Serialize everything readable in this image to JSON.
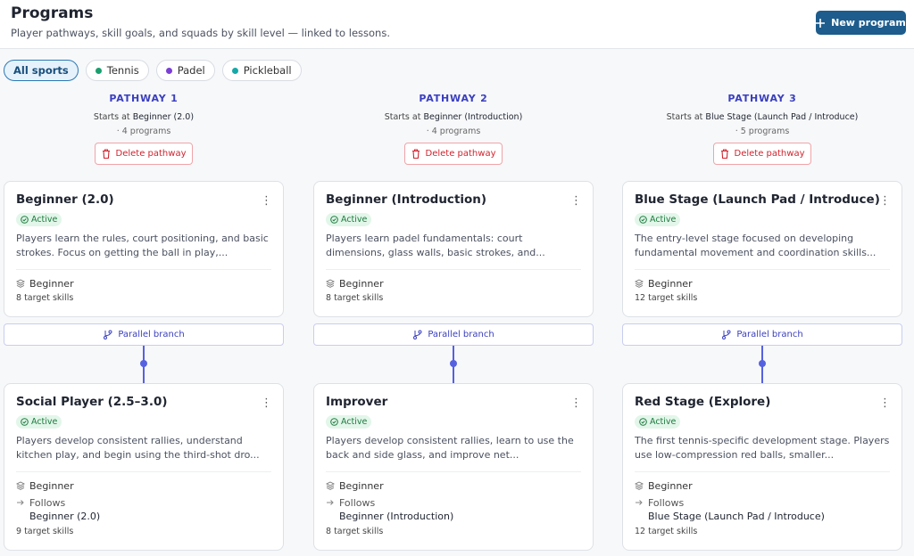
{
  "header": {
    "title": "Programs",
    "subtitle": "Player pathways, skill goals, and squads by skill level — linked to lessons.",
    "new_button": "New program"
  },
  "filters": [
    {
      "label": "All sports"
    },
    {
      "label": "Tennis",
      "color": "#1a9e6e"
    },
    {
      "label": "Padel",
      "color": "#7b3fd6"
    },
    {
      "label": "Pickleball",
      "color": "#16a8a8"
    }
  ],
  "pathways": [
    {
      "title": "PATHWAY 1",
      "starts_at": "Starts at",
      "start": "Beginner (2.0)",
      "count": "· 4 programs",
      "delete": "Delete pathway",
      "branch": "Parallel branch",
      "programs": [
        {
          "name": "Beginner (2.0)",
          "status": "Active",
          "description": "Players learn the rules, court positioning, and basic strokes. Focus on getting the ball in play,...",
          "level": "Beginner",
          "skills": "8 target skills"
        },
        {
          "name": "Social Player (2.5–3.0)",
          "status": "Active",
          "description": "Players develop consistent rallies, understand kitchen play, and begin using the third-shot dro...",
          "level": "Beginner",
          "follows_label": "Follows",
          "follows": "Beginner (2.0)",
          "skills": "9 target skills"
        }
      ]
    },
    {
      "title": "PATHWAY 2",
      "starts_at": "Starts at",
      "start": "Beginner (Introduction)",
      "count": "· 4 programs",
      "delete": "Delete pathway",
      "branch": "Parallel branch",
      "programs": [
        {
          "name": "Beginner (Introduction)",
          "status": "Active",
          "description": "Players learn padel fundamentals: court dimensions, glass walls, basic strokes, and...",
          "level": "Beginner",
          "skills": "8 target skills"
        },
        {
          "name": "Improver",
          "status": "Active",
          "description": "Players develop consistent rallies, learn to use the back and side glass, and improve net...",
          "level": "Beginner",
          "follows_label": "Follows",
          "follows": "Beginner (Introduction)",
          "skills": "8 target skills"
        }
      ]
    },
    {
      "title": "PATHWAY 3",
      "starts_at": "Starts at",
      "start": "Blue Stage (Launch Pad / Introduce)",
      "count": "· 5 programs",
      "delete": "Delete pathway",
      "branch": "Parallel branch",
      "programs": [
        {
          "name": "Blue Stage (Launch Pad / Introduce)",
          "status": "Active",
          "description": "The entry-level stage focused on developing fundamental movement and coordination skills...",
          "level": "Beginner",
          "skills": "12 target skills"
        },
        {
          "name": "Red Stage (Explore)",
          "status": "Active",
          "description": "The first tennis-specific development stage. Players use low-compression red balls, smaller...",
          "level": "Beginner",
          "follows_label": "Follows",
          "follows": "Blue Stage (Launch Pad / Introduce)",
          "skills": "12 target skills"
        }
      ]
    }
  ]
}
